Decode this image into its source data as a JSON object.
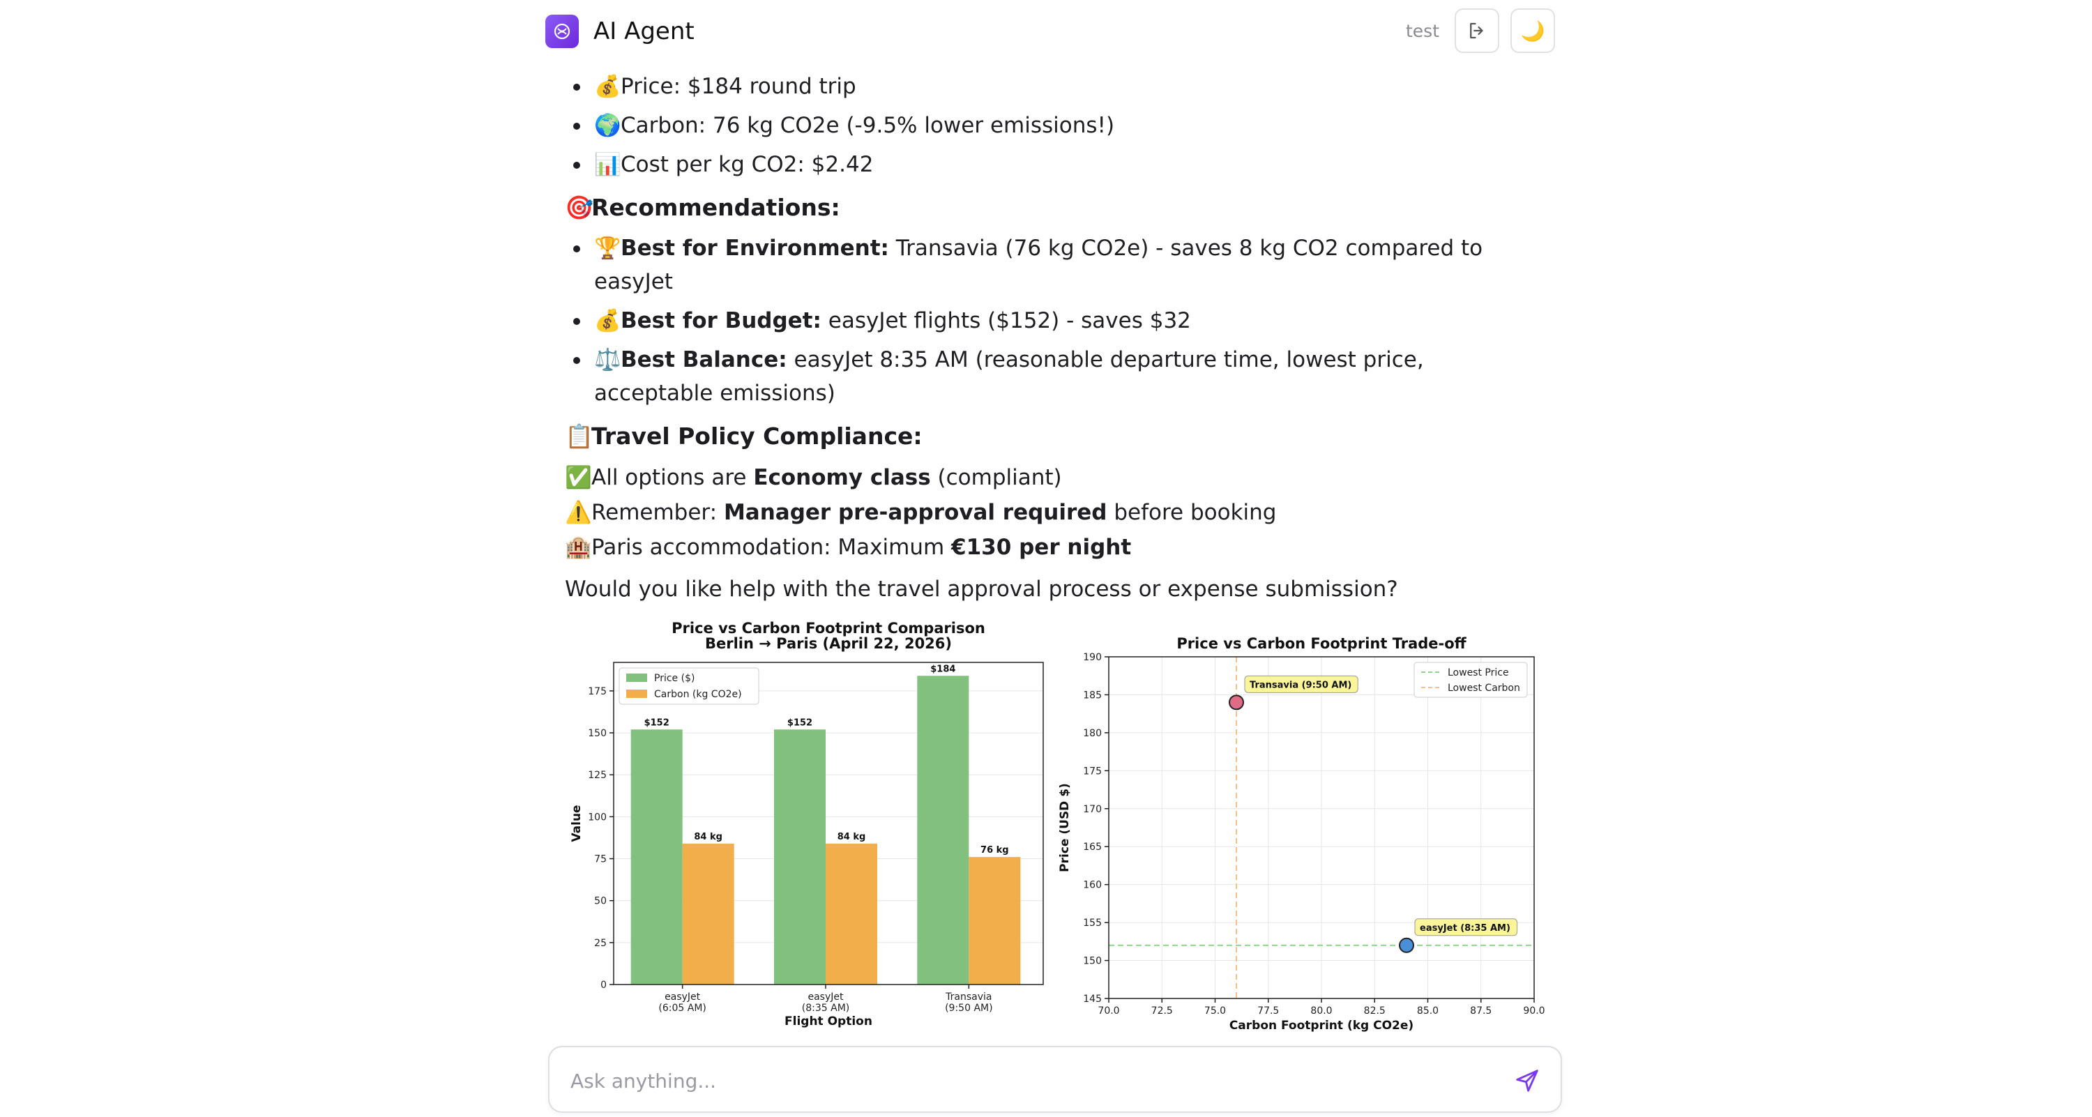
{
  "app": {
    "title": "AI Agent",
    "user": "test",
    "theme_icon": "moon-icon",
    "accent": "#7c3aed"
  },
  "content": {
    "top_bullets": [
      {
        "emoji": "💰",
        "icon": "money-bag-icon",
        "text": "Price: $184 round trip"
      },
      {
        "emoji": "🌍",
        "icon": "globe-icon",
        "text": "Carbon: 76 kg CO2e (-9.5% lower emissions!)"
      },
      {
        "emoji": "📊",
        "icon": "bar-chart-icon",
        "text": "Cost per kg CO2: $2.42"
      }
    ],
    "recommendations": {
      "heading_emoji": "🎯",
      "heading": "Recommendations:",
      "items": [
        {
          "emoji": "🏆",
          "icon": "trophy-icon",
          "label": "Best for Environment:",
          "text": " Transavia (76 kg CO2e) - saves 8 kg CO2 compared to easyJet"
        },
        {
          "emoji": "💰",
          "icon": "money-bag-icon",
          "label": "Best for Budget:",
          "text": " easyJet flights ($152) - saves $32"
        },
        {
          "emoji": "⚖️",
          "icon": "balance-scale-icon",
          "label": "Best Balance:",
          "text": " easyJet 8:35 AM (reasonable departure time, lowest price, acceptable emissions)"
        }
      ]
    },
    "policy": {
      "heading_emoji": "📋",
      "heading": "Travel Policy Compliance:",
      "lines": [
        {
          "emoji": "✅",
          "icon": "check-icon",
          "pre": "All options are ",
          "bold": "Economy class",
          "post": " (compliant)"
        },
        {
          "emoji": "⚠️",
          "icon": "warning-icon",
          "pre": "Remember: ",
          "bold": "Manager pre-approval required",
          "post": " before booking"
        },
        {
          "emoji": "🏨",
          "icon": "hotel-icon",
          "pre": "Paris accommodation: Maximum ",
          "bold": "€130 per night",
          "post": ""
        }
      ]
    },
    "closing": "Would you like help with the travel approval process or expense submission?"
  },
  "chart_data": [
    {
      "type": "bar",
      "title": "Price vs Carbon Footprint Comparison",
      "subtitle": "Berlin → Paris (April 22, 2026)",
      "xlabel": "Flight Option",
      "ylabel": "Value",
      "categories": [
        "easyJet\n(6:05 AM)",
        "easyJet\n(8:35 AM)",
        "Transavia\n(9:50 AM)"
      ],
      "category_lines": [
        [
          "easyJet",
          "(6:05 AM)"
        ],
        [
          "easyJet",
          "(8:35 AM)"
        ],
        [
          "Transavia",
          "(9:50 AM)"
        ]
      ],
      "series": [
        {
          "name": "Price ($)",
          "values": [
            152,
            152,
            184
          ],
          "labels": [
            "$152",
            "$152",
            "$184"
          ],
          "color": "#82c07d"
        },
        {
          "name": "Carbon (kg CO2e)",
          "values": [
            84,
            84,
            76
          ],
          "labels": [
            "84 kg",
            "84 kg",
            "76 kg"
          ],
          "color": "#f2ae4b"
        }
      ],
      "ylim": [
        0,
        192
      ],
      "yticks": [
        0,
        25,
        50,
        75,
        100,
        125,
        150,
        175
      ],
      "legend": "top-left",
      "grid": true
    },
    {
      "type": "scatter",
      "title": "Price vs Carbon Footprint Trade-off",
      "xlabel": "Carbon Footprint (kg CO2e)",
      "ylabel": "Price (USD $)",
      "xlim": [
        70,
        90
      ],
      "ylim": [
        145,
        190
      ],
      "xticks": [
        70,
        72.5,
        75,
        77.5,
        80,
        82.5,
        85,
        87.5,
        90
      ],
      "xtick_labels": [
        "70.0",
        "72.5",
        "75.0",
        "77.5",
        "80.0",
        "82.5",
        "85.0",
        "87.5",
        "90.0"
      ],
      "yticks": [
        145,
        150,
        155,
        160,
        165,
        170,
        175,
        180,
        185,
        190
      ],
      "points": [
        {
          "x": 76,
          "y": 184,
          "label": "Transavia (9:50 AM)",
          "color": "#e06b86"
        },
        {
          "x": 84,
          "y": 152,
          "label": "easyJet (8:35 AM)",
          "color": "#4a90d9"
        }
      ],
      "reference_lines": [
        {
          "name": "Lowest Price",
          "axis": "y",
          "value": 152,
          "color": "#8fd48a"
        },
        {
          "name": "Lowest Carbon",
          "axis": "x",
          "value": 76,
          "color": "#f5c08a"
        }
      ],
      "legend": "top-right",
      "grid": true
    }
  ],
  "composer": {
    "placeholder": "Ask anything...",
    "send_icon": "send-icon"
  }
}
